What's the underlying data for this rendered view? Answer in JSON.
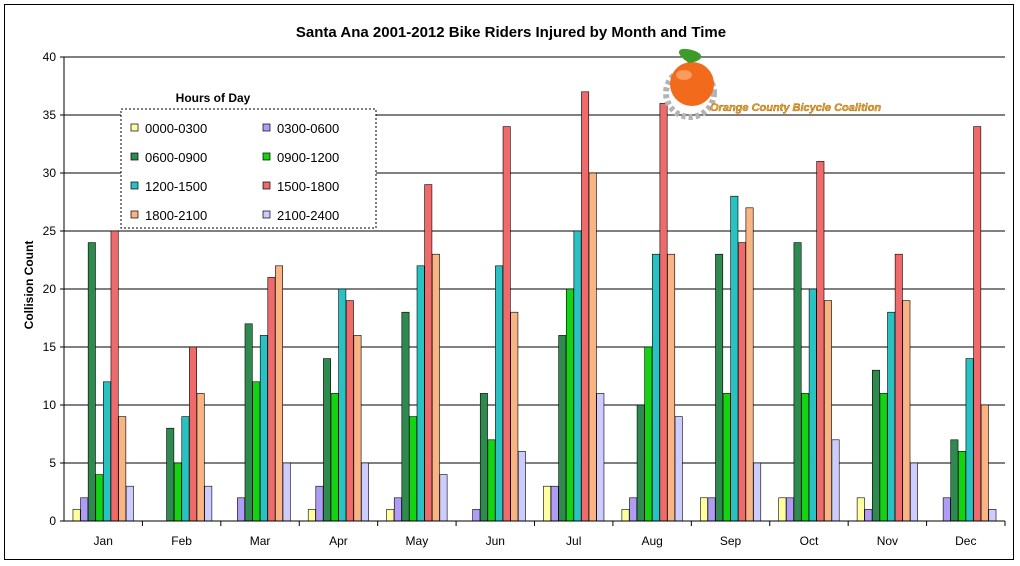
{
  "colors": {
    "series": [
      "#ffffa0",
      "#b19cf5",
      "#2f8a4f",
      "#13d313",
      "#28c2c2",
      "#ef6b6b",
      "#f8b482",
      "#ccccff"
    ],
    "grid": "#000000",
    "logo_orange": "#f26a1b",
    "logo_leaf": "#3d9b2a",
    "logo_gear": "#b3b3b3",
    "logo_text": "#f3a21d"
  },
  "logo": {
    "text": "Orange County Bicycle Coalition",
    "icon": "orange-gear-logo-icon"
  },
  "chart_data": {
    "type": "bar",
    "title": "Santa Ana 2001-2012 Bike Riders Injured by Month and Time",
    "xlabel": "",
    "ylabel": "Collision Count",
    "ylim": [
      0,
      40
    ],
    "yticks": [
      0,
      5,
      10,
      15,
      20,
      25,
      30,
      35,
      40
    ],
    "grid": true,
    "legend": {
      "title": "Hours of Day",
      "placement": "top-left"
    },
    "categories": [
      "Jan",
      "Feb",
      "Mar",
      "Apr",
      "May",
      "Jun",
      "Jul",
      "Aug",
      "Sep",
      "Oct",
      "Nov",
      "Dec"
    ],
    "series": [
      {
        "name": "0000-0300",
        "values": [
          1,
          0,
          0,
          1,
          1,
          0,
          3,
          1,
          2,
          2,
          2,
          0
        ]
      },
      {
        "name": "0300-0600",
        "values": [
          2,
          0,
          2,
          3,
          2,
          1,
          3,
          2,
          2,
          2,
          1,
          2
        ]
      },
      {
        "name": "0600-0900",
        "values": [
          24,
          8,
          17,
          14,
          18,
          11,
          16,
          10,
          23,
          24,
          13,
          7
        ]
      },
      {
        "name": "0900-1200",
        "values": [
          4,
          5,
          12,
          11,
          9,
          7,
          20,
          15,
          11,
          11,
          11,
          6
        ]
      },
      {
        "name": "1200-1500",
        "values": [
          12,
          9,
          16,
          20,
          22,
          22,
          25,
          23,
          28,
          20,
          18,
          14
        ]
      },
      {
        "name": "1500-1800",
        "values": [
          25,
          15,
          21,
          19,
          29,
          34,
          37,
          36,
          24,
          31,
          23,
          34
        ]
      },
      {
        "name": "1800-2100",
        "values": [
          9,
          11,
          22,
          16,
          23,
          18,
          30,
          23,
          27,
          19,
          19,
          10
        ]
      },
      {
        "name": "2100-2400",
        "values": [
          3,
          3,
          5,
          5,
          4,
          6,
          11,
          9,
          5,
          7,
          5,
          1
        ]
      }
    ]
  }
}
